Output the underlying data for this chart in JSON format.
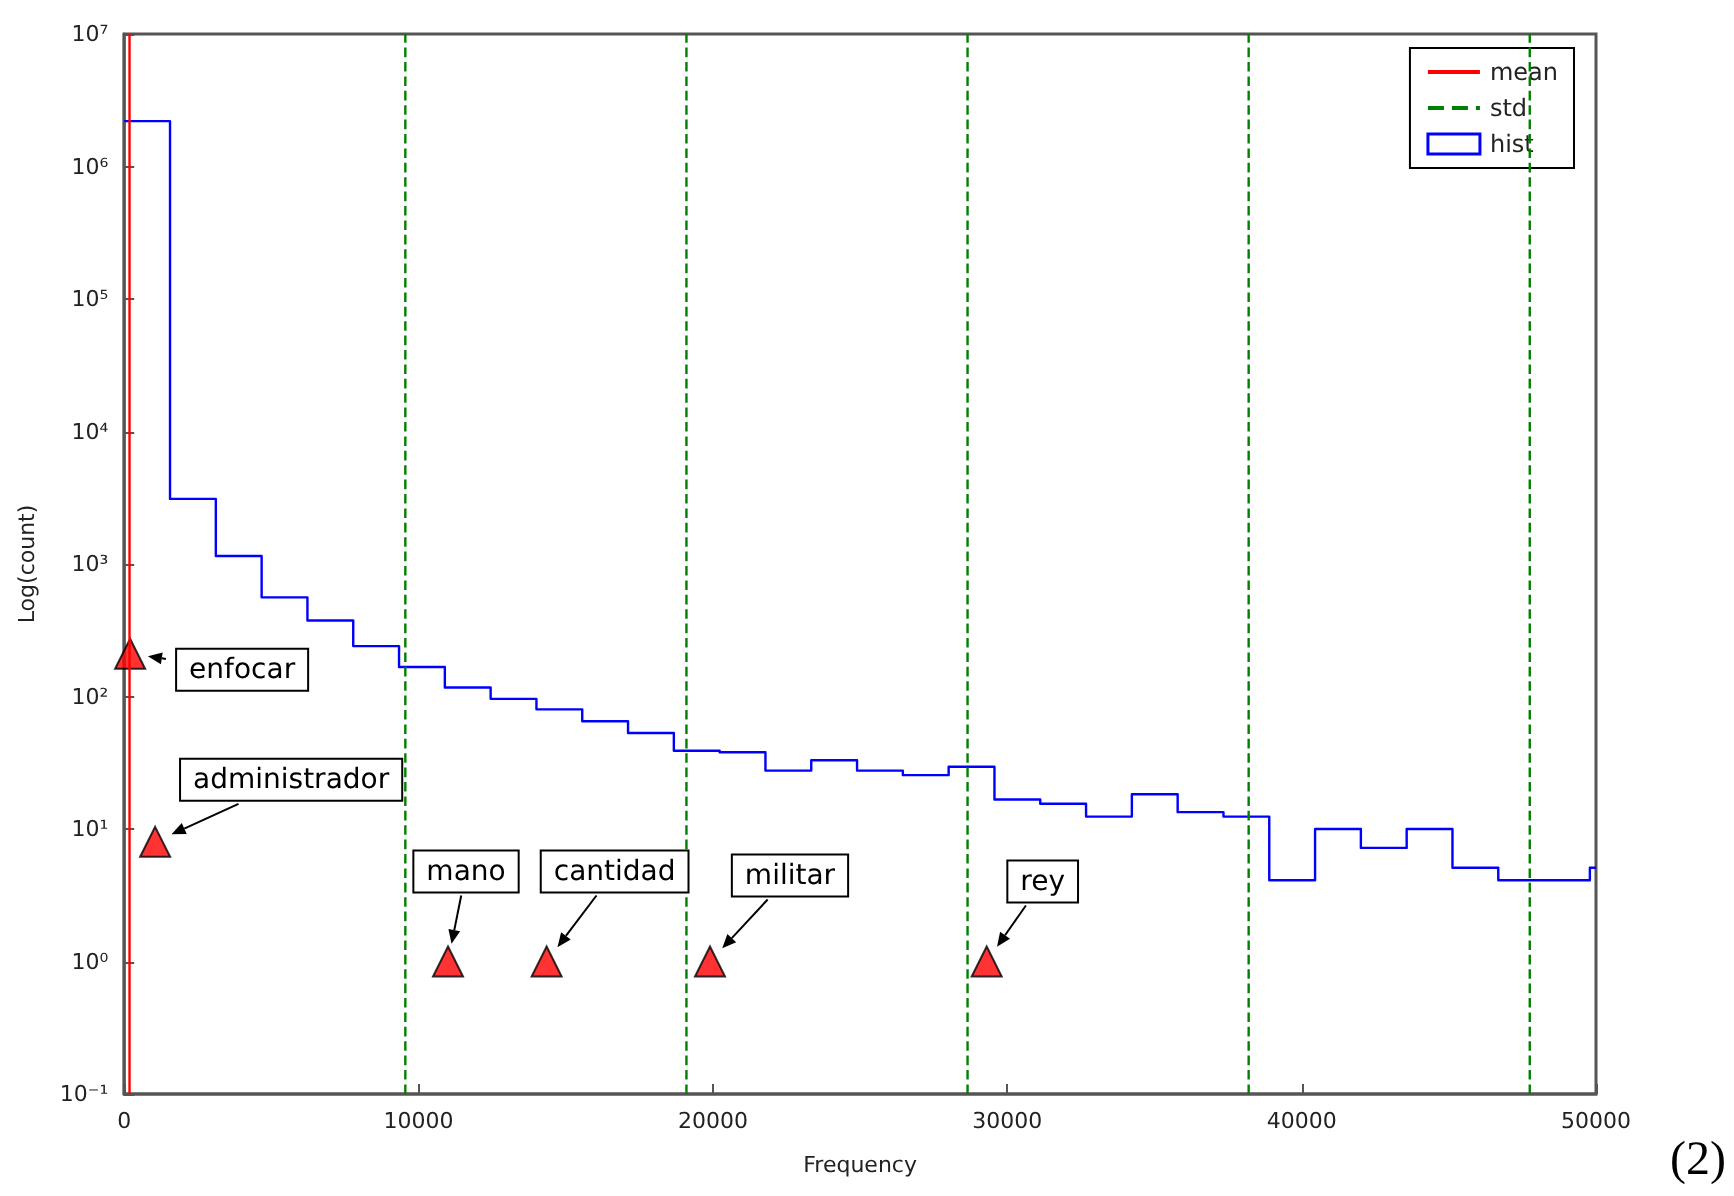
{
  "chart_data": {
    "type": "histogram",
    "xlabel": "Frequency",
    "ylabel": "Log(count)",
    "bins": [
      0,
      1556,
      3112,
      4668,
      6224,
      7780,
      9336,
      10892,
      12448,
      14004,
      15560,
      17116,
      18672,
      20228,
      21784,
      23340,
      24896,
      26452,
      28008,
      29564,
      31120,
      32676,
      34232,
      35788,
      37344,
      38900,
      40456,
      42012,
      43568,
      45124,
      46680,
      48236,
      49792,
      50000
    ],
    "series": [
      {
        "name": "mean",
        "type": "line",
        "color": "#ff0000",
        "line_style": "solid",
        "x": [
          180,
          180
        ],
        "values": [
          0.1,
          10000000
        ]
      },
      {
        "name": "std",
        "type": "line",
        "color": "#008000",
        "line_style": "dashed",
        "x": [
          9550,
          9550
        ],
        "values": [
          0.1,
          10000000
        ]
      },
      {
        "type": "line",
        "color": "#008000",
        "line_style": "dashed",
        "x": [
          19100,
          19100
        ],
        "values": [
          0.1,
          10000000
        ]
      },
      {
        "type": "line",
        "color": "#008000",
        "line_style": "dashed",
        "x": [
          28650,
          28650
        ],
        "values": [
          0.1,
          10000000
        ]
      },
      {
        "type": "line",
        "color": "#008000",
        "line_style": "dashed",
        "x": [
          38200,
          38200
        ],
        "values": [
          0.1,
          10000000
        ]
      },
      {
        "type": "line",
        "color": "#008000",
        "line_style": "dashed",
        "x": [
          47750,
          47750
        ],
        "values": [
          0.1,
          10000000
        ]
      },
      {
        "name": "hist",
        "color": "#0000ff",
        "values": [
          2200000,
          3100,
          1150,
          560,
          375,
          240,
          167,
          117,
          96,
          80,
          65,
          53,
          39,
          38,
          27.6,
          33,
          27.6,
          25.5,
          29.5,
          16.7,
          15.5,
          12.4,
          18.3,
          13.4,
          12.4,
          4.1,
          10,
          7.2,
          10,
          5.1,
          4.1,
          4.1,
          5.1
        ]
      },
      {
        "type": "scatter",
        "color": "#ff0000",
        "marker": "triangle",
        "x": [
          200,
          1050,
          11000,
          14350,
          19900,
          29300
        ],
        "values": [
          210,
          8,
          1,
          1,
          1,
          1
        ]
      }
    ],
    "log": "y",
    "xlim": [
      0,
      50000
    ],
    "xticks": [
      0,
      10000,
      20000,
      30000,
      40000,
      50000
    ],
    "ylim": [
      0.1,
      10000000
    ],
    "yticks": [
      {
        "value": 0.1,
        "label": "10⁻¹"
      },
      {
        "value": 1,
        "label": "10⁰"
      },
      {
        "value": 10,
        "label": "10¹"
      },
      {
        "value": 100,
        "label": "10²"
      },
      {
        "value": 1000,
        "label": "10³"
      },
      {
        "value": 10000,
        "label": "10⁴"
      },
      {
        "value": 100000,
        "label": "10⁵"
      },
      {
        "value": 1000000,
        "label": "10⁶"
      },
      {
        "value": 10000000,
        "label": "10⁷"
      }
    ],
    "annotations": [
      {
        "text": "enfocar",
        "x": 200,
        "y": 210
      },
      {
        "text": "administrador",
        "x": 1050,
        "y": 8
      },
      {
        "text": "mano",
        "x": 11000,
        "y": 1
      },
      {
        "text": "cantidad",
        "x": 14350,
        "y": 1
      },
      {
        "text": "militar",
        "x": 19900,
        "y": 1
      },
      {
        "text": "rey",
        "x": 29300,
        "y": 1
      },
      "(2)"
    ],
    "grid": false,
    "legend": "top right"
  }
}
